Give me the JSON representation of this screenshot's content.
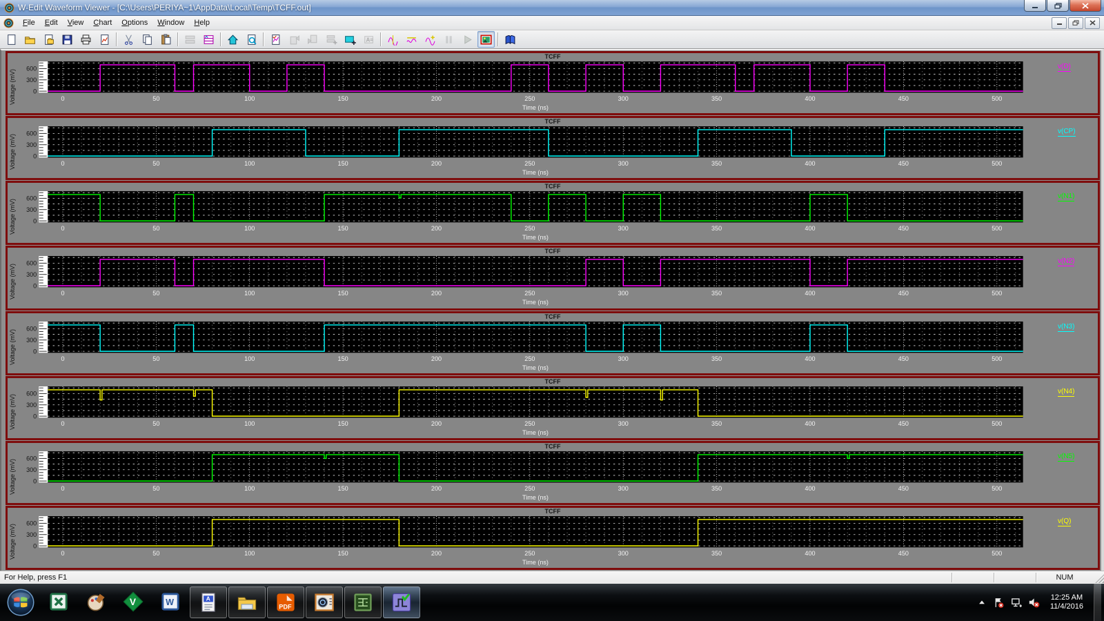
{
  "window": {
    "title": "W-Edit Waveform Viewer - [C:\\Users\\PERIYA~1\\AppData\\Local\\Temp\\TCFF.out]",
    "controls": [
      "minimize",
      "restore",
      "close"
    ]
  },
  "menu": {
    "items": [
      {
        "label": "File"
      },
      {
        "label": "Edit"
      },
      {
        "label": "View"
      },
      {
        "label": "Chart"
      },
      {
        "label": "Options"
      },
      {
        "label": "Window"
      },
      {
        "label": "Help"
      }
    ],
    "mdi_controls": [
      "minimize",
      "restore",
      "close"
    ]
  },
  "toolbar": {
    "buttons": [
      {
        "name": "new",
        "kind": "page"
      },
      {
        "name": "open",
        "kind": "folder"
      },
      {
        "name": "open-output",
        "kind": "pagesave"
      },
      {
        "name": "save",
        "kind": "floppy"
      },
      {
        "name": "print",
        "kind": "printer"
      },
      {
        "name": "export-chart-image",
        "kind": "pagechart"
      },
      {
        "sep": true
      },
      {
        "name": "cut",
        "kind": "scissors"
      },
      {
        "name": "copy",
        "kind": "copy"
      },
      {
        "name": "paste",
        "kind": "paste"
      },
      {
        "sep": true
      },
      {
        "name": "tile-charts",
        "kind": "rows",
        "disabled": true
      },
      {
        "name": "chart-window",
        "kind": "chartwin"
      },
      {
        "sep": true
      },
      {
        "name": "home-view",
        "kind": "home"
      },
      {
        "name": "zoom-full-page",
        "kind": "pagezoom"
      },
      {
        "sep": true
      },
      {
        "name": "chart-properties",
        "kind": "chartedit"
      },
      {
        "name": "copy-chart",
        "kind": "pageup",
        "disabled": true
      },
      {
        "name": "paste-chart",
        "kind": "pagedown",
        "disabled": true
      },
      {
        "name": "expand-charts",
        "kind": "rowsplus",
        "disabled": true
      },
      {
        "name": "add-chart",
        "kind": "chartadd"
      },
      {
        "name": "text-annotation",
        "kind": "alabel",
        "disabled": true
      },
      {
        "sep": true
      },
      {
        "name": "trace-cursor",
        "kind": "wavecursor"
      },
      {
        "name": "trace-measure",
        "kind": "waveflat"
      },
      {
        "name": "trace-add-point",
        "kind": "waveplus"
      },
      {
        "name": "pause-simulation",
        "kind": "pause",
        "disabled": true
      },
      {
        "name": "run-simulation",
        "kind": "play",
        "disabled": true
      },
      {
        "name": "show-image",
        "kind": "picture",
        "pressed": true
      },
      {
        "sep": true
      },
      {
        "name": "help-topics",
        "kind": "book"
      }
    ]
  },
  "chart_data": {
    "type": "line",
    "panel_title": "TCFF",
    "xlabel": "Time (ns)",
    "ylabel": "Voltage (mV)",
    "xlim": [
      -8,
      514
    ],
    "ylim": [
      -40,
      790
    ],
    "xticks": [
      0,
      50,
      100,
      150,
      200,
      250,
      300,
      350,
      400,
      450,
      500
    ],
    "yticks": [
      0,
      300,
      600
    ],
    "minor_xgrid_ns": 10,
    "grid": "white dotted on black",
    "high_mV": 700,
    "low_mV": 0,
    "panels": [
      {
        "signal": "v(D)",
        "color": "#ff00ff",
        "points": [
          [
            -8,
            0
          ],
          [
            20,
            0
          ],
          [
            20,
            700
          ],
          [
            60,
            700
          ],
          [
            60,
            0
          ],
          [
            70,
            0
          ],
          [
            70,
            700
          ],
          [
            100,
            700
          ],
          [
            100,
            0
          ],
          [
            120,
            0
          ],
          [
            120,
            700
          ],
          [
            140,
            700
          ],
          [
            140,
            0
          ],
          [
            240,
            0
          ],
          [
            240,
            700
          ],
          [
            260,
            700
          ],
          [
            260,
            0
          ],
          [
            280,
            0
          ],
          [
            280,
            700
          ],
          [
            300,
            700
          ],
          [
            300,
            0
          ],
          [
            320,
            0
          ],
          [
            320,
            700
          ],
          [
            360,
            700
          ],
          [
            360,
            0
          ],
          [
            370,
            0
          ],
          [
            370,
            700
          ],
          [
            400,
            700
          ],
          [
            400,
            0
          ],
          [
            420,
            0
          ],
          [
            420,
            700
          ],
          [
            440,
            700
          ],
          [
            440,
            0
          ],
          [
            514,
            0
          ]
        ]
      },
      {
        "signal": "v(CP)",
        "color": "#00ffff",
        "points": [
          [
            -8,
            0
          ],
          [
            80,
            0
          ],
          [
            80,
            700
          ],
          [
            130,
            700
          ],
          [
            130,
            0
          ],
          [
            180,
            0
          ],
          [
            180,
            700
          ],
          [
            260,
            700
          ],
          [
            260,
            0
          ],
          [
            340,
            0
          ],
          [
            340,
            700
          ],
          [
            390,
            700
          ],
          [
            390,
            0
          ],
          [
            440,
            0
          ],
          [
            440,
            700
          ],
          [
            514,
            700
          ]
        ]
      },
      {
        "signal": "v(N1)",
        "color": "#00ff00",
        "points": [
          [
            -8,
            700
          ],
          [
            20,
            700
          ],
          [
            20,
            0
          ],
          [
            60,
            0
          ],
          [
            60,
            700
          ],
          [
            70,
            700
          ],
          [
            70,
            0
          ],
          [
            140,
            0
          ],
          [
            140,
            700
          ],
          [
            179,
            700
          ],
          [
            180,
            610
          ],
          [
            181,
            700
          ],
          [
            240,
            700
          ],
          [
            240,
            0
          ],
          [
            260,
            0
          ],
          [
            260,
            700
          ],
          [
            280,
            700
          ],
          [
            280,
            0
          ],
          [
            300,
            0
          ],
          [
            300,
            700
          ],
          [
            320,
            700
          ],
          [
            320,
            0
          ],
          [
            400,
            0
          ],
          [
            400,
            700
          ],
          [
            420,
            700
          ],
          [
            420,
            0
          ],
          [
            514,
            0
          ]
        ]
      },
      {
        "signal": "v(N2)",
        "color": "#ff00ff",
        "points": [
          [
            -8,
            0
          ],
          [
            20,
            0
          ],
          [
            20,
            700
          ],
          [
            60,
            700
          ],
          [
            60,
            0
          ],
          [
            70,
            0
          ],
          [
            70,
            700
          ],
          [
            140,
            700
          ],
          [
            140,
            0
          ],
          [
            280,
            0
          ],
          [
            280,
            700
          ],
          [
            300,
            700
          ],
          [
            300,
            0
          ],
          [
            320,
            0
          ],
          [
            320,
            700
          ],
          [
            400,
            700
          ],
          [
            400,
            0
          ],
          [
            420,
            0
          ],
          [
            420,
            700
          ],
          [
            514,
            700
          ]
        ]
      },
      {
        "signal": "v(N3)",
        "color": "#00ffff",
        "points": [
          [
            -8,
            700
          ],
          [
            20,
            700
          ],
          [
            20,
            0
          ],
          [
            60,
            0
          ],
          [
            60,
            700
          ],
          [
            70,
            700
          ],
          [
            70,
            0
          ],
          [
            140,
            0
          ],
          [
            140,
            700
          ],
          [
            280,
            700
          ],
          [
            280,
            0
          ],
          [
            300,
            0
          ],
          [
            300,
            700
          ],
          [
            320,
            700
          ],
          [
            320,
            0
          ],
          [
            400,
            0
          ],
          [
            400,
            700
          ],
          [
            420,
            700
          ],
          [
            420,
            0
          ],
          [
            514,
            0
          ]
        ]
      },
      {
        "signal": "v(N4)",
        "color": "#ffff00",
        "points": [
          [
            -8,
            700
          ],
          [
            19,
            700
          ],
          [
            20,
            430
          ],
          [
            21,
            700
          ],
          [
            69,
            700
          ],
          [
            70,
            530
          ],
          [
            71,
            700
          ],
          [
            80,
            700
          ],
          [
            80,
            0
          ],
          [
            180,
            0
          ],
          [
            180,
            700
          ],
          [
            279,
            700
          ],
          [
            280,
            500
          ],
          [
            281,
            700
          ],
          [
            319,
            700
          ],
          [
            320,
            430
          ],
          [
            321,
            700
          ],
          [
            340,
            700
          ],
          [
            340,
            0
          ],
          [
            514,
            0
          ]
        ]
      },
      {
        "signal": "v(N5)",
        "color": "#00ff00",
        "points": [
          [
            -8,
            0
          ],
          [
            80,
            0
          ],
          [
            80,
            700
          ],
          [
            139,
            700
          ],
          [
            140,
            600
          ],
          [
            141,
            700
          ],
          [
            180,
            700
          ],
          [
            180,
            0
          ],
          [
            340,
            0
          ],
          [
            340,
            700
          ],
          [
            419,
            700
          ],
          [
            420,
            600
          ],
          [
            421,
            700
          ],
          [
            514,
            700
          ]
        ]
      },
      {
        "signal": "v(Q)",
        "color": "#ffff00",
        "points": [
          [
            -8,
            0
          ],
          [
            80,
            0
          ],
          [
            80,
            700
          ],
          [
            180,
            700
          ],
          [
            180,
            0
          ],
          [
            340,
            0
          ],
          [
            340,
            700
          ],
          [
            514,
            700
          ]
        ]
      }
    ]
  },
  "status": {
    "message": "For Help, press F1",
    "num": "NUM"
  },
  "taskbar": {
    "apps": [
      {
        "name": "excel",
        "kind": "excel"
      },
      {
        "name": "paint",
        "kind": "paint"
      },
      {
        "name": "vim",
        "kind": "vim"
      },
      {
        "name": "word",
        "kind": "word"
      },
      {
        "name": "document-viewer",
        "kind": "adoc",
        "open": true
      },
      {
        "name": "file-manager",
        "kind": "folder",
        "open": true
      },
      {
        "name": "pdf-reader",
        "kind": "pdf",
        "open": true
      },
      {
        "name": "tspice",
        "kind": "machine",
        "open": true
      },
      {
        "name": "sedit-schematic",
        "kind": "circuit",
        "open": true
      },
      {
        "name": "wedit-waveform",
        "kind": "wave",
        "open": true,
        "active": true
      }
    ],
    "clock": {
      "time": "12:25 AM",
      "date": "11/4/2016"
    }
  },
  "colors": {
    "frame_maroon": "#7e0c0c",
    "plot_background": "#000000",
    "grid_dots": "#e8e8e8",
    "panel_gray": "#868686",
    "titlebar_blue": "#7ea2d3"
  }
}
